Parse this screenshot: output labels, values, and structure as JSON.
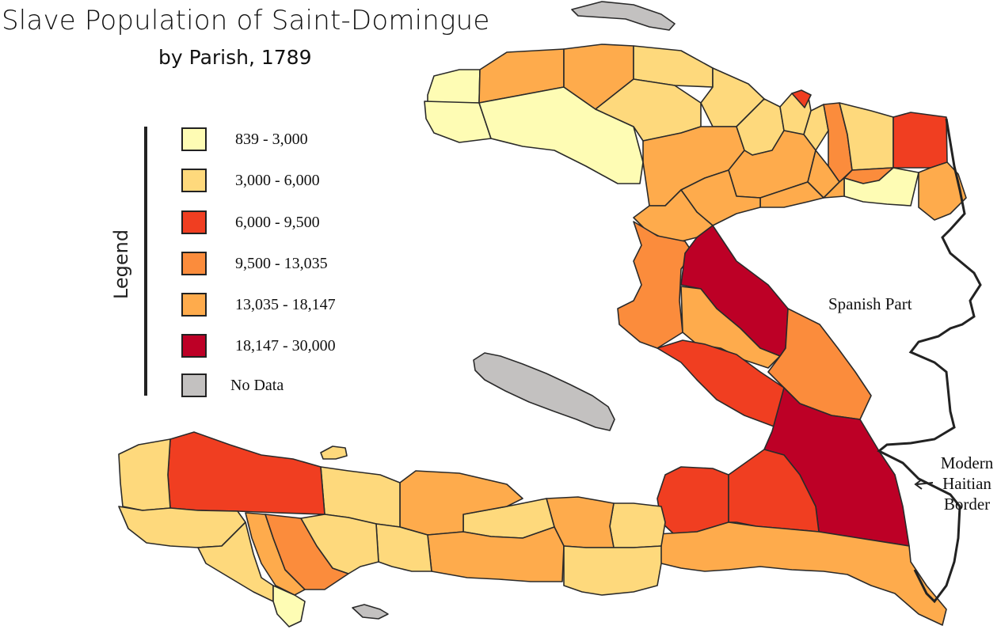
{
  "title": {
    "line1": "Slave Population of Saint-Domingue",
    "line2": "by Parish, 1789"
  },
  "legend": {
    "title": "Legend",
    "items": [
      {
        "label": "839 - 3,000",
        "color": "#fefcb4"
      },
      {
        "label": "3,000 - 6,000",
        "color": "#fed97c"
      },
      {
        "label": "6,000 - 9,500",
        "color": "#f03e21"
      },
      {
        "label": "9,500 - 13,035",
        "color": "#fb8c3c"
      },
      {
        "label": "13,035 - 18,147",
        "color": "#feab4c"
      },
      {
        "label": "18,147 - 30,000",
        "color": "#bd0026"
      },
      {
        "label": "No Data",
        "color": "#c3c1c0"
      }
    ]
  },
  "labels": {
    "spanish_part": "Spanish Part",
    "border_line1": "Modern",
    "border_line2": "Haitian",
    "border_line3": "Border"
  },
  "colors": {
    "border": "#222222",
    "water": "#ffffff",
    "outline": "#2a2a2a"
  }
}
